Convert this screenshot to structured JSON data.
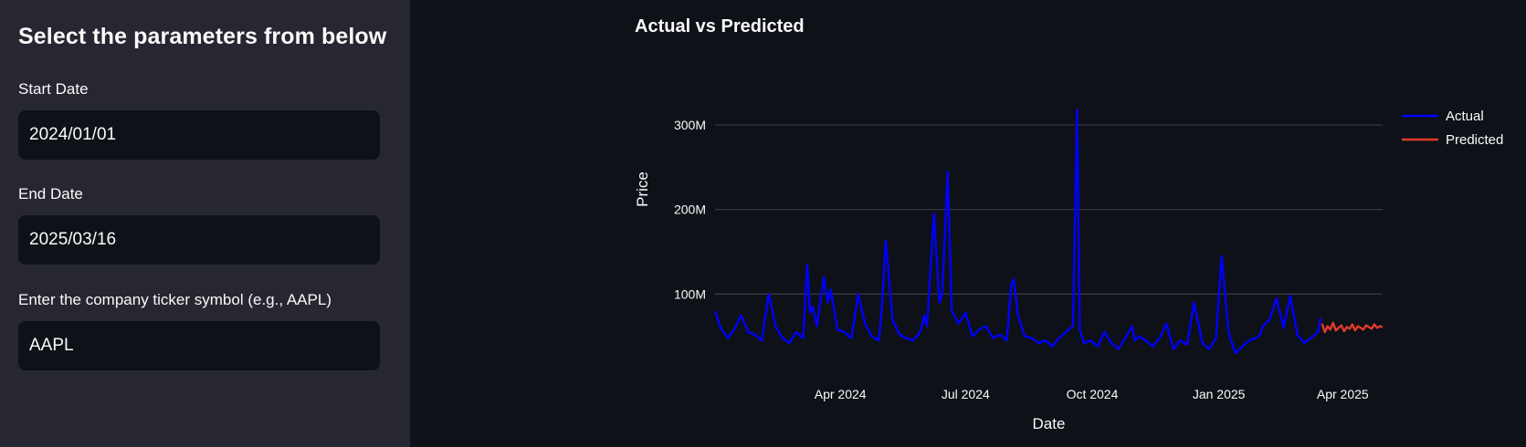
{
  "sidebar": {
    "heading": "Select the parameters from below",
    "start_date": {
      "label": "Start Date",
      "value": "2024/01/01"
    },
    "end_date": {
      "label": "End Date",
      "value": "2025/03/16"
    },
    "ticker": {
      "label": "Enter the company ticker symbol (e.g., AAPL)",
      "value": "AAPL"
    }
  },
  "chart_data": {
    "type": "line",
    "title": "Actual vs Predicted",
    "xlabel": "Date",
    "ylabel": "Price",
    "xlim": [
      "2024-01-01",
      "2025-04-30"
    ],
    "ylim": [
      0,
      340000000
    ],
    "y_ticks": [
      100000000,
      200000000,
      300000000
    ],
    "y_tick_labels": [
      "100M",
      "200M",
      "300M"
    ],
    "x_ticks": [
      "2024-04-01",
      "2024-07-01",
      "2024-10-01",
      "2025-01-01",
      "2025-04-01"
    ],
    "x_tick_labels": [
      "Apr 2024",
      "Jul 2024",
      "Oct 2024",
      "Jan 2025",
      "Apr 2025"
    ],
    "grid": true,
    "legend_position": "top-right",
    "colors": {
      "Actual": "#0000ff",
      "Predicted": "#e03a2c",
      "grid": "#3a3d45"
    },
    "series": [
      {
        "name": "Actual",
        "x": [
          "2024-01-01",
          "2024-01-05",
          "2024-01-10",
          "2024-01-15",
          "2024-01-20",
          "2024-01-25",
          "2024-01-30",
          "2024-02-04",
          "2024-02-09",
          "2024-02-14",
          "2024-02-19",
          "2024-02-24",
          "2024-02-29",
          "2024-03-05",
          "2024-03-08",
          "2024-03-10",
          "2024-03-12",
          "2024-03-15",
          "2024-03-20",
          "2024-03-23",
          "2024-03-25",
          "2024-03-30",
          "2024-04-04",
          "2024-04-09",
          "2024-04-14",
          "2024-04-19",
          "2024-04-24",
          "2024-04-29",
          "2024-05-01",
          "2024-05-04",
          "2024-05-09",
          "2024-05-14",
          "2024-05-19",
          "2024-05-24",
          "2024-05-29",
          "2024-06-01",
          "2024-06-03",
          "2024-06-08",
          "2024-06-12",
          "2024-06-14",
          "2024-06-18",
          "2024-06-21",
          "2024-06-26",
          "2024-07-01",
          "2024-07-06",
          "2024-07-11",
          "2024-07-16",
          "2024-07-21",
          "2024-07-26",
          "2024-07-31",
          "2024-08-03",
          "2024-08-05",
          "2024-08-08",
          "2024-08-13",
          "2024-08-18",
          "2024-08-23",
          "2024-08-28",
          "2024-09-02",
          "2024-09-07",
          "2024-09-12",
          "2024-09-17",
          "2024-09-20",
          "2024-09-22",
          "2024-09-25",
          "2024-09-30",
          "2024-10-05",
          "2024-10-10",
          "2024-10-15",
          "2024-10-20",
          "2024-10-25",
          "2024-10-30",
          "2024-11-01",
          "2024-11-04",
          "2024-11-09",
          "2024-11-14",
          "2024-11-19",
          "2024-11-24",
          "2024-11-29",
          "2024-12-04",
          "2024-12-09",
          "2024-12-14",
          "2024-12-20",
          "2024-12-25",
          "2024-12-30",
          "2025-01-03",
          "2025-01-08",
          "2025-01-13",
          "2025-01-18",
          "2025-01-23",
          "2025-01-28",
          "2025-01-31",
          "2025-02-02",
          "2025-02-07",
          "2025-02-12",
          "2025-02-17",
          "2025-02-22",
          "2025-02-27",
          "2025-03-04",
          "2025-03-09",
          "2025-03-14",
          "2025-03-16"
        ],
        "y": [
          80000000,
          60000000,
          48000000,
          58000000,
          75000000,
          55000000,
          52000000,
          45000000,
          100000000,
          62000000,
          48000000,
          42000000,
          55000000,
          48000000,
          135000000,
          78000000,
          85000000,
          62000000,
          120000000,
          90000000,
          105000000,
          58000000,
          55000000,
          48000000,
          100000000,
          65000000,
          50000000,
          45000000,
          80000000,
          163000000,
          70000000,
          52000000,
          48000000,
          45000000,
          55000000,
          75000000,
          62000000,
          195000000,
          90000000,
          100000000,
          245000000,
          80000000,
          65000000,
          78000000,
          50000000,
          58000000,
          62000000,
          48000000,
          52000000,
          45000000,
          110000000,
          118000000,
          75000000,
          50000000,
          48000000,
          42000000,
          45000000,
          38000000,
          48000000,
          55000000,
          62000000,
          318000000,
          58000000,
          42000000,
          45000000,
          38000000,
          55000000,
          42000000,
          35000000,
          48000000,
          62000000,
          45000000,
          50000000,
          45000000,
          38000000,
          48000000,
          65000000,
          35000000,
          45000000,
          40000000,
          90000000,
          42000000,
          35000000,
          48000000,
          145000000,
          55000000,
          30000000,
          38000000,
          45000000,
          48000000,
          52000000,
          62000000,
          70000000,
          95000000,
          60000000,
          98000000,
          52000000,
          42000000,
          48000000,
          55000000,
          72000000
        ]
      },
      {
        "name": "Predicted",
        "x": [
          "2025-03-17",
          "2025-03-19",
          "2025-03-21",
          "2025-03-23",
          "2025-03-25",
          "2025-03-27",
          "2025-03-29",
          "2025-03-31",
          "2025-04-02",
          "2025-04-04",
          "2025-04-06",
          "2025-04-08",
          "2025-04-10",
          "2025-04-12",
          "2025-04-14",
          "2025-04-16",
          "2025-04-18",
          "2025-04-20",
          "2025-04-22",
          "2025-04-24",
          "2025-04-26",
          "2025-04-28",
          "2025-04-30"
        ],
        "y": [
          65000000,
          55000000,
          62000000,
          58000000,
          66000000,
          57000000,
          60000000,
          63000000,
          56000000,
          61000000,
          59000000,
          64000000,
          57000000,
          62000000,
          60000000,
          58000000,
          63000000,
          61000000,
          59000000,
          64000000,
          60000000,
          62000000,
          61000000
        ]
      }
    ]
  }
}
